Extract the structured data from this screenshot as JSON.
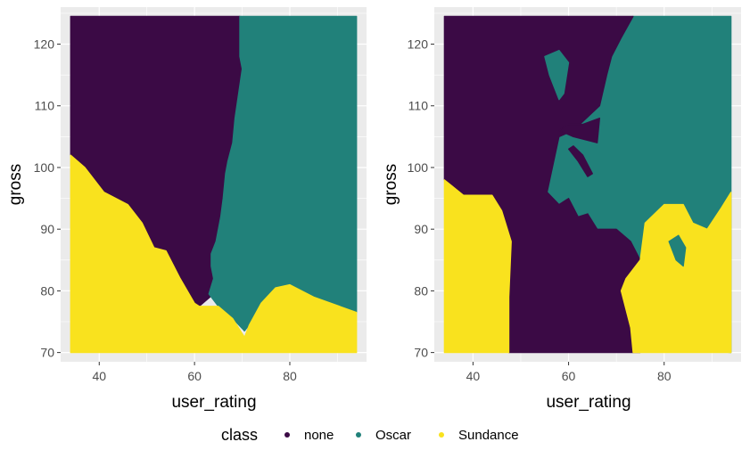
{
  "colors": {
    "panel_background": "#ebebeb",
    "grid_major": "#ffffff",
    "tick_text": "#4d4d4d",
    "none": "#3b0a45",
    "Oscar": "#21817a",
    "Sundance": "#f9e21e"
  },
  "legend": {
    "title": "class",
    "items": [
      {
        "label": "none",
        "color_key": "none"
      },
      {
        "label": "Oscar",
        "color_key": "Oscar"
      },
      {
        "label": "Sundance",
        "color_key": "Sundance"
      }
    ],
    "position": "bottom"
  },
  "chart_data": [
    {
      "type": "area",
      "xlabel": "user_rating",
      "ylabel": "gross",
      "xlim": [
        31.9,
        96.1
      ],
      "ylim": [
        68.5,
        126.0
      ],
      "xticks": [
        40,
        60,
        80
      ],
      "yticks": [
        70,
        80,
        90,
        100,
        110,
        120
      ],
      "grid": true,
      "regions": [
        {
          "class": "none",
          "polygon": [
            [
              34,
              124.5
            ],
            [
              69.5,
              124.5
            ],
            [
              69.5,
              118
            ],
            [
              70,
              116
            ],
            [
              68.5,
              108
            ],
            [
              68,
              104
            ],
            [
              67,
              101
            ],
            [
              66.5,
              99
            ],
            [
              66,
              95
            ],
            [
              65.5,
              92
            ],
            [
              64.5,
              88
            ],
            [
              63.5,
              86
            ],
            [
              63.5,
              84
            ],
            [
              65,
              82
            ],
            [
              64,
              79.5
            ],
            [
              61,
              77.5
            ],
            [
              60,
              78
            ],
            [
              57,
              82
            ],
            [
              54,
              86.5
            ],
            [
              51.5,
              87
            ],
            [
              49,
              91
            ],
            [
              46,
              94
            ],
            [
              41,
              96
            ],
            [
              37,
              100
            ],
            [
              34,
              102
            ]
          ]
        },
        {
          "class": "Oscar",
          "polygon": [
            [
              69.5,
              124.5
            ],
            [
              94,
              124.5
            ],
            [
              94,
              76.5
            ],
            [
              85,
              79
            ],
            [
              80,
              81
            ],
            [
              77,
              80.5
            ],
            [
              74,
              78
            ],
            [
              71.5,
              74.5
            ],
            [
              70.5,
              73.5
            ],
            [
              68,
              75.5
            ],
            [
              65,
              77.5
            ],
            [
              63,
              79.5
            ],
            [
              64,
              82
            ],
            [
              63.5,
              84
            ],
            [
              63.5,
              86
            ],
            [
              64.5,
              88
            ],
            [
              65.5,
              92
            ],
            [
              66,
              95
            ],
            [
              66.5,
              99
            ],
            [
              67,
              101
            ],
            [
              68,
              104
            ],
            [
              68.5,
              108
            ],
            [
              70,
              116
            ],
            [
              69.5,
              118
            ]
          ]
        },
        {
          "class": "Sundance",
          "polygon": [
            [
              34,
              70
            ],
            [
              94,
              70
            ],
            [
              94,
              76.5
            ],
            [
              85,
              79
            ],
            [
              80,
              81
            ],
            [
              77,
              80.5
            ],
            [
              74,
              78
            ],
            [
              71.5,
              74.5
            ],
            [
              70.5,
              72.5
            ],
            [
              68,
              75.5
            ],
            [
              65,
              77.5
            ],
            [
              61,
              77.5
            ],
            [
              60,
              78
            ],
            [
              57,
              82
            ],
            [
              54,
              86.5
            ],
            [
              51.5,
              87
            ],
            [
              49,
              91
            ],
            [
              46,
              94
            ],
            [
              41,
              96
            ],
            [
              37,
              100
            ],
            [
              34,
              102
            ]
          ]
        }
      ]
    },
    {
      "type": "area",
      "xlabel": "user_rating",
      "ylabel": "gross",
      "xlim": [
        31.9,
        96.1
      ],
      "ylim": [
        68.5,
        126.0
      ],
      "xticks": [
        40,
        60,
        80
      ],
      "yticks": [
        70,
        80,
        90,
        100,
        110,
        120
      ],
      "grid": true,
      "regions": [
        {
          "class": "Oscar",
          "polygon": [
            [
              94,
              70
            ],
            [
              94,
              124.5
            ],
            [
              73.5,
              124.5
            ],
            [
              71,
              121
            ],
            [
              69,
              118
            ],
            [
              68,
              115
            ],
            [
              66.5,
              110
            ],
            [
              61,
              106
            ],
            [
              58,
              105
            ],
            [
              55.5,
              96
            ],
            [
              58,
              94
            ],
            [
              60,
              95
            ],
            [
              62,
              92
            ],
            [
              64,
              92.5
            ],
            [
              66,
              90
            ],
            [
              70,
              90
            ],
            [
              73,
              88
            ],
            [
              75,
              85
            ],
            [
              78,
              82
            ],
            [
              74,
              76
            ],
            [
              73.5,
              71
            ]
          ]
        },
        {
          "class": "none",
          "polygon": [
            [
              34,
              124.5
            ],
            [
              73.5,
              124.5
            ],
            [
              71,
              121
            ],
            [
              69,
              118
            ],
            [
              68,
              115
            ],
            [
              66.5,
              110
            ],
            [
              61,
              106
            ],
            [
              58,
              105
            ],
            [
              55.5,
              96
            ],
            [
              58,
              94
            ],
            [
              60,
              95
            ],
            [
              62,
              92
            ],
            [
              64,
              92.5
            ],
            [
              66,
              90
            ],
            [
              70,
              90
            ],
            [
              73,
              88
            ],
            [
              75,
              85
            ],
            [
              78,
              82
            ],
            [
              74,
              76
            ],
            [
              73.5,
              71
            ],
            [
              75,
              70
            ],
            [
              47.5,
              70
            ],
            [
              47.5,
              79
            ],
            [
              48,
              88
            ],
            [
              46,
              93
            ],
            [
              44,
              95.5
            ],
            [
              38,
              95.5
            ],
            [
              34,
              98
            ]
          ]
        },
        {
          "class": "Sundance",
          "polygon": [
            [
              34,
              70
            ],
            [
              47.5,
              70
            ],
            [
              47.5,
              79
            ],
            [
              48,
              88
            ],
            [
              46,
              93
            ],
            [
              44,
              95.5
            ],
            [
              38,
              95.5
            ],
            [
              34,
              98
            ]
          ]
        },
        {
          "class": "Sundance",
          "polygon": [
            [
              73.5,
              70
            ],
            [
              94,
              70
            ],
            [
              94,
              96
            ],
            [
              92,
              93.5
            ],
            [
              89,
              90
            ],
            [
              86,
              91
            ],
            [
              84,
              94
            ],
            [
              80,
              94
            ],
            [
              76,
              91
            ],
            [
              75,
              85
            ],
            [
              72,
              82
            ],
            [
              71,
              80
            ],
            [
              73,
              74
            ]
          ]
        },
        {
          "class": "Oscar",
          "polygon": [
            [
              55,
              118
            ],
            [
              56,
              115
            ],
            [
              58,
              111
            ],
            [
              59,
              112
            ],
            [
              60,
              117
            ],
            [
              58,
              119
            ]
          ]
        },
        {
          "class": "none",
          "polygon": [
            [
              58,
              106
            ],
            [
              61,
              105
            ],
            [
              66,
              104
            ],
            [
              66.5,
              108
            ],
            [
              63,
              107
            ],
            [
              60,
              107
            ]
          ]
        },
        {
          "class": "none",
          "polygon": [
            [
              60,
              103
            ],
            [
              62,
              101
            ],
            [
              64,
              98.5
            ],
            [
              65,
              99
            ],
            [
              63,
              102
            ],
            [
              61,
              103.5
            ]
          ]
        },
        {
          "class": "Oscar",
          "polygon": [
            [
              81,
              88
            ],
            [
              82.5,
              85
            ],
            [
              84,
              84
            ],
            [
              84.5,
              87
            ],
            [
              83,
              89
            ]
          ]
        }
      ]
    }
  ]
}
